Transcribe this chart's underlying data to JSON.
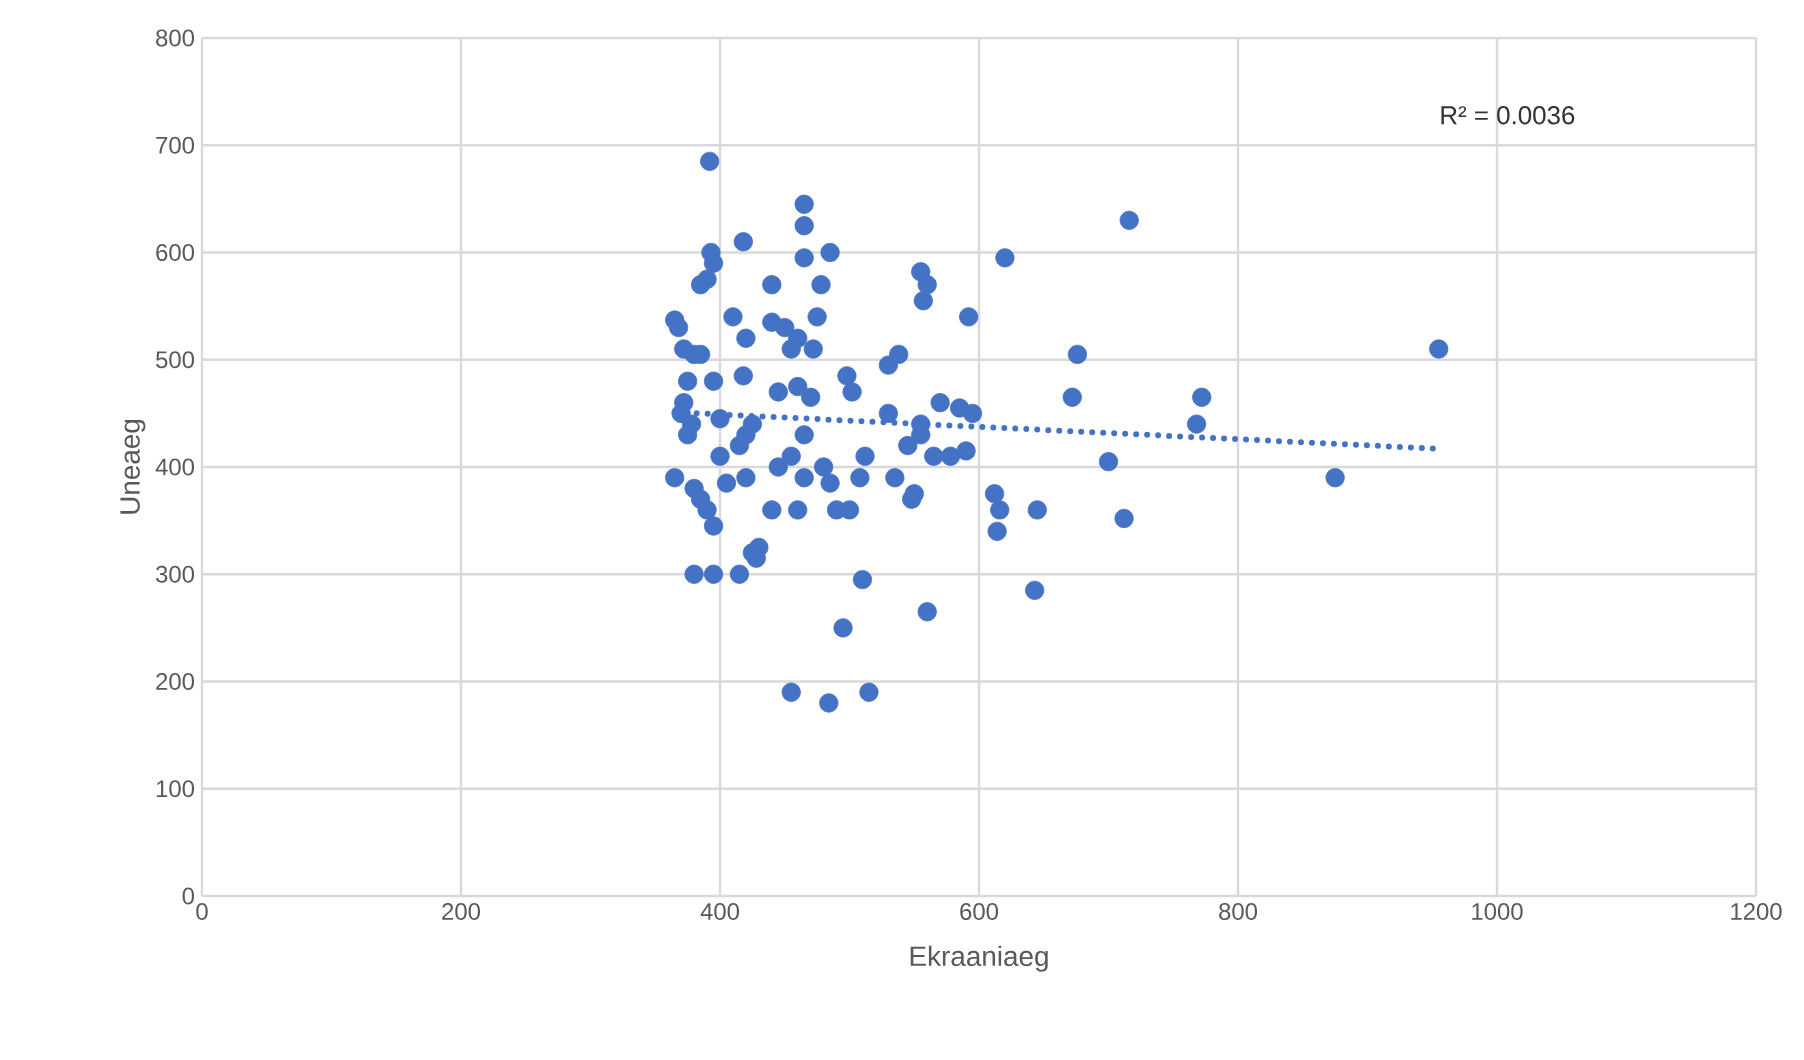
{
  "chart_data": {
    "type": "scatter",
    "xlabel": "Ekraaniaeg",
    "ylabel": "Uneaeg",
    "xlim": [
      0,
      1200
    ],
    "xticks": [
      0,
      200,
      400,
      600,
      800,
      1000,
      1200
    ],
    "ylim": [
      0,
      800
    ],
    "yticks": [
      0,
      100,
      200,
      300,
      400,
      500,
      600,
      700,
      800
    ],
    "grid": true,
    "annotations": [
      "R² = 0.0036"
    ],
    "series": [
      {
        "color": "#4472c4",
        "marker": "circle",
        "x": [
          392,
          365,
          368,
          372,
          380,
          385,
          390,
          393,
          395,
          375,
          372,
          370,
          378,
          375,
          395,
          385,
          365,
          380,
          385,
          390,
          395,
          400,
          400,
          405,
          380,
          395,
          410,
          418,
          418,
          420,
          425,
          420,
          415,
          420,
          425,
          430,
          428,
          415,
          440,
          440,
          445,
          450,
          455,
          460,
          465,
          465,
          465,
          472,
          475,
          478,
          485,
          460,
          470,
          465,
          455,
          445,
          440,
          460,
          465,
          480,
          485,
          490,
          498,
          502,
          500,
          508,
          512,
          510,
          495,
          515,
          455,
          484,
          530,
          538,
          530,
          535,
          545,
          548,
          550,
          555,
          557,
          560,
          555,
          555,
          560,
          565,
          570,
          578,
          585,
          592,
          590,
          595,
          612,
          614,
          616,
          620,
          643,
          645,
          672,
          676,
          700,
          712,
          716,
          768,
          772,
          875,
          955
        ],
        "values": [
          685,
          537,
          530,
          510,
          505,
          570,
          575,
          600,
          590,
          480,
          460,
          450,
          440,
          430,
          480,
          505,
          390,
          380,
          370,
          360,
          345,
          445,
          410,
          385,
          300,
          300,
          540,
          610,
          485,
          520,
          440,
          430,
          420,
          390,
          320,
          325,
          315,
          300,
          570,
          535,
          470,
          530,
          510,
          520,
          645,
          625,
          595,
          510,
          540,
          570,
          600,
          475,
          465,
          430,
          410,
          400,
          360,
          360,
          390,
          400,
          385,
          360,
          485,
          470,
          360,
          390,
          410,
          295,
          250,
          190,
          190,
          180,
          495,
          505,
          450,
          390,
          420,
          370,
          375,
          582,
          555,
          570,
          440,
          430,
          265,
          410,
          460,
          410,
          455,
          540,
          415,
          450,
          375,
          340,
          360,
          595,
          285,
          360,
          465,
          505,
          405,
          352,
          630,
          440,
          465,
          390,
          510
        ]
      },
      {
        "type": "line",
        "color": "#4472c4",
        "marker": "none",
        "line_style": "dotted",
        "x": [
          365,
          955
        ],
        "values": [
          451,
          417
        ]
      }
    ]
  }
}
